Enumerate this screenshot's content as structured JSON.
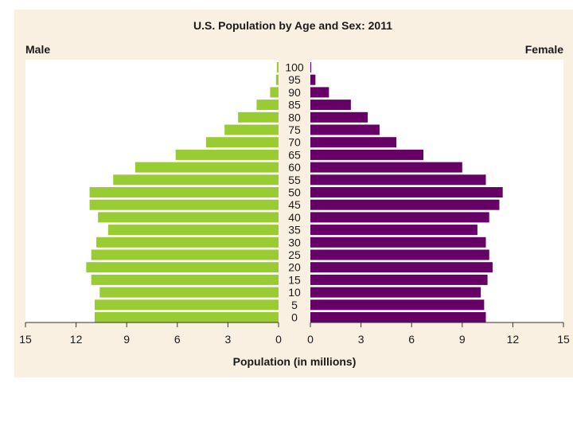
{
  "chart_data": {
    "type": "bar",
    "subtype": "population-pyramid",
    "title": "U.S. Population by Age and Sex: 2011",
    "left_label": "Male",
    "right_label": "Female",
    "xlabel": "Population (in millions)",
    "xlim": [
      0,
      15
    ],
    "xticks": [
      "15",
      "12",
      "9",
      "6",
      "3",
      "0"
    ],
    "xticks_right": [
      "0",
      "3",
      "6",
      "9",
      "12",
      "15"
    ],
    "categories": [
      "100",
      "95",
      "90",
      "85",
      "80",
      "75",
      "70",
      "65",
      "60",
      "55",
      "50",
      "45",
      "40",
      "35",
      "30",
      "25",
      "20",
      "15",
      "10",
      "5",
      "0"
    ],
    "series": [
      {
        "name": "Male",
        "color": "#99cc33",
        "values": [
          0.1,
          0.15,
          0.5,
          1.3,
          2.4,
          3.2,
          4.3,
          6.1,
          8.5,
          9.8,
          11.2,
          11.2,
          10.7,
          10.1,
          10.8,
          11.1,
          11.4,
          11.1,
          10.6,
          10.9,
          10.9
        ]
      },
      {
        "name": "Female",
        "color": "#660066",
        "values": [
          0.05,
          0.3,
          1.1,
          2.4,
          3.4,
          4.1,
          5.1,
          6.7,
          9.0,
          10.4,
          11.4,
          11.2,
          10.6,
          9.9,
          10.4,
          10.6,
          10.8,
          10.5,
          10.1,
          10.3,
          10.4
        ]
      }
    ]
  }
}
